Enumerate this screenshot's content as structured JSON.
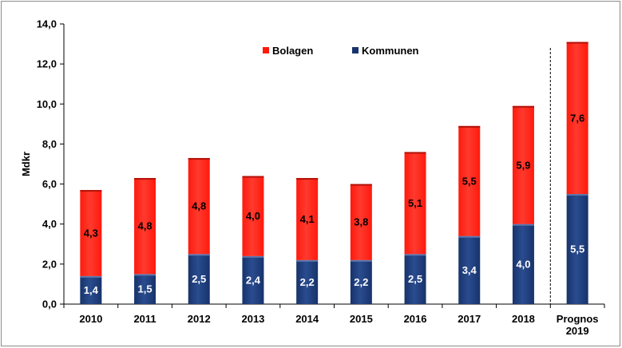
{
  "chart_data": {
    "type": "bar",
    "stacked": true,
    "categories": [
      [
        "2010"
      ],
      [
        "2011"
      ],
      [
        "2012"
      ],
      [
        "2013"
      ],
      [
        "2014"
      ],
      [
        "2015"
      ],
      [
        "2016"
      ],
      [
        "2017"
      ],
      [
        "2018"
      ],
      [
        "Prognos",
        "2019"
      ]
    ],
    "series": [
      {
        "name": "Kommunen",
        "color": "#17336b",
        "values": [
          1.4,
          1.5,
          2.5,
          2.4,
          2.2,
          2.2,
          2.5,
          3.4,
          4.0,
          5.5
        ],
        "labels": [
          "1,4",
          "1,5",
          "2,5",
          "2,4",
          "2,2",
          "2,2",
          "2,5",
          "3,4",
          "4,0",
          "5,5"
        ],
        "label_color": "#ffffff"
      },
      {
        "name": "Bolagen",
        "color": "#ff1a0d",
        "values": [
          4.3,
          4.8,
          4.8,
          4.0,
          4.1,
          3.8,
          5.1,
          5.5,
          5.9,
          7.6
        ],
        "labels": [
          "4,3",
          "4,8",
          "4,8",
          "4,0",
          "4,1",
          "3,8",
          "5,1",
          "5,5",
          "5,9",
          "7,6"
        ],
        "label_color": "#000000"
      }
    ],
    "ylabel": "Mdkr",
    "ylim": [
      0,
      14
    ],
    "yticks": [
      0,
      2,
      4,
      6,
      8,
      10,
      12,
      14
    ],
    "ytick_labels": [
      "0,0",
      "2,0",
      "4,0",
      "6,0",
      "8,0",
      "10,0",
      "12,0",
      "14,0"
    ],
    "forecast_divider_after_index": 8,
    "legend_order": [
      "Bolagen",
      "Kommunen"
    ],
    "legend_position": "top-center"
  }
}
